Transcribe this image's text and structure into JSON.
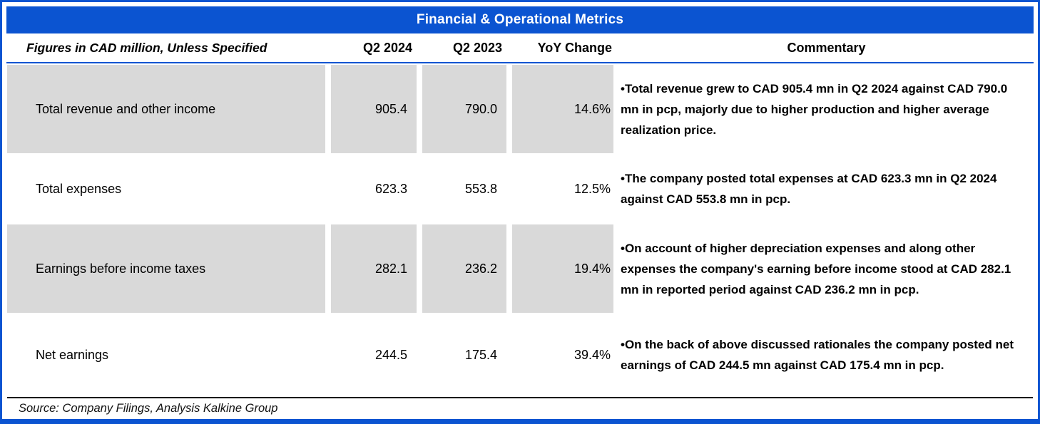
{
  "header": {
    "title": "Financial & Operational Metrics",
    "columns": [
      "Figures in CAD million, Unless Specified",
      "Q2 2024",
      "Q2 2023",
      "YoY Change",
      "Commentary"
    ]
  },
  "table": {
    "rows": [
      {
        "label": "Total revenue and other income",
        "q2_2024": "905.4",
        "q2_2023": "790.0",
        "yoy_change": "14.6%",
        "commentary": "•Total revenue grew to CAD 905.4 mn in Q2 2024 against CAD 790.0 mn in pcp, majorly due to higher production and higher average realization price."
      },
      {
        "label": "Total expenses",
        "q2_2024": "623.3",
        "q2_2023": "553.8",
        "yoy_change": "12.5%",
        "commentary": "•The company posted total expenses at CAD 623.3 mn in Q2 2024 against CAD 553.8 mn in pcp."
      },
      {
        "label": "Earnings before income taxes",
        "q2_2024": "282.1",
        "q2_2023": "236.2",
        "yoy_change": "19.4%",
        "commentary": "•On account of higher depreciation expenses and along other expenses the company's earning before income stood at CAD 282.1 mn in reported period against CAD 236.2 mn in pcp."
      },
      {
        "label": "Net earnings",
        "q2_2024": "244.5",
        "q2_2023": "175.4",
        "yoy_change": "39.4%",
        "commentary": "•On the back of above discussed rationales the company posted net earnings of CAD 244.5 mn against CAD 175.4 mn in pcp."
      }
    ]
  },
  "footer": {
    "source": "Source: Company Filings, Analysis Kalkine Group"
  },
  "colors": {
    "accent_blue": "#0b54d1",
    "row_shading_gray": "#d9d9d9",
    "text_black": "#000000"
  }
}
